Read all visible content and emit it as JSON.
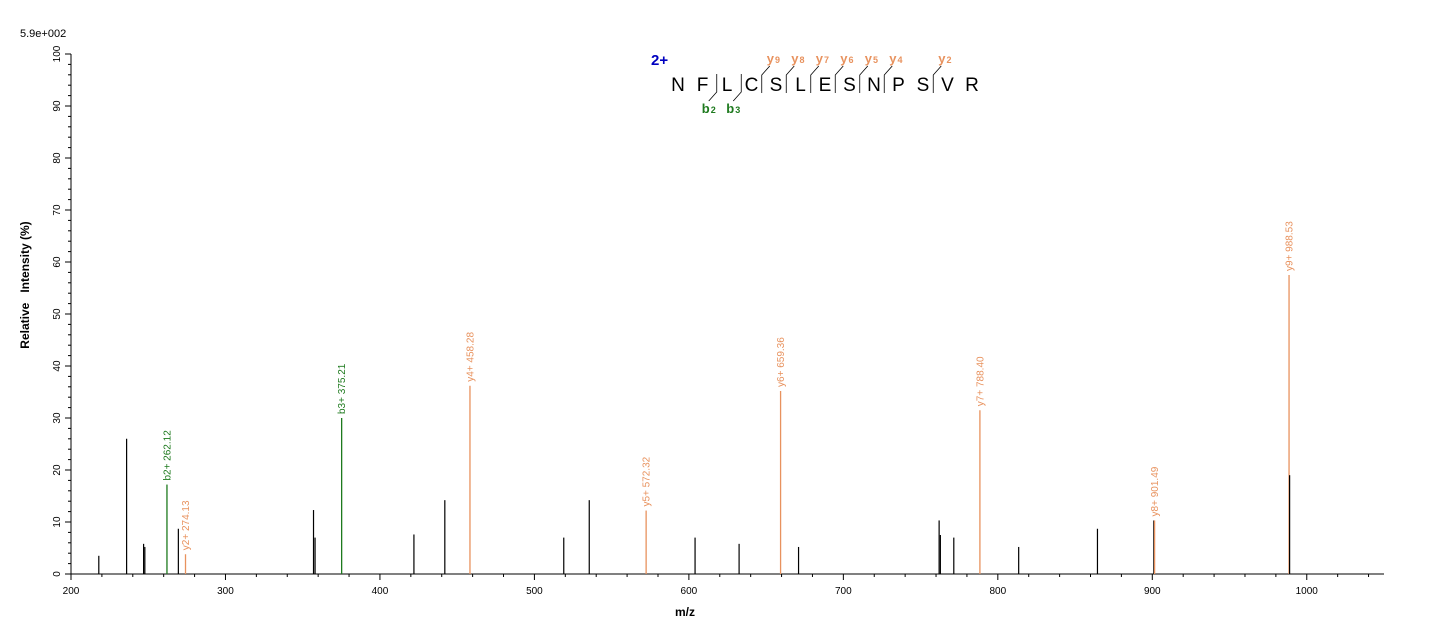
{
  "colors": {
    "y_ion": "#E8925E",
    "b_ion": "#1E7A1E",
    "other": "#000000",
    "charge": "#0000C0"
  },
  "chart_data": {
    "type": "bar",
    "scale_label": "5.9e+002",
    "xlabel": "m/z",
    "ylabel": "Relative   Intensity (%)",
    "xlim": [
      200,
      1050
    ],
    "ylim": [
      0,
      100
    ],
    "x_ticks": [
      200,
      300,
      400,
      500,
      600,
      700,
      800,
      900,
      1000
    ],
    "y_ticks": [
      0,
      10,
      20,
      30,
      40,
      50,
      60,
      70,
      80,
      90,
      100
    ],
    "peaks": [
      {
        "mz": 218.0,
        "intensity": 3.5,
        "ion": "other"
      },
      {
        "mz": 236.0,
        "intensity": 26.0,
        "ion": "other"
      },
      {
        "mz": 247.0,
        "intensity": 5.8,
        "ion": "other"
      },
      {
        "mz": 247.8,
        "intensity": 5.2,
        "ion": "other"
      },
      {
        "mz": 262.12,
        "intensity": 17.2,
        "ion": "b",
        "label": "b2+ 262.12"
      },
      {
        "mz": 269.5,
        "intensity": 8.7,
        "ion": "other"
      },
      {
        "mz": 274.13,
        "intensity": 3.8,
        "ion": "y",
        "label": "y2+ 274.13"
      },
      {
        "mz": 357.0,
        "intensity": 12.3,
        "ion": "other"
      },
      {
        "mz": 358.0,
        "intensity": 7.0,
        "ion": "other"
      },
      {
        "mz": 375.21,
        "intensity": 30.0,
        "ion": "b",
        "label": "b3+ 375.21"
      },
      {
        "mz": 422.0,
        "intensity": 7.6,
        "ion": "other"
      },
      {
        "mz": 442.0,
        "intensity": 14.2,
        "ion": "other"
      },
      {
        "mz": 458.28,
        "intensity": 36.2,
        "ion": "y",
        "label": "y4+ 458.28"
      },
      {
        "mz": 519.0,
        "intensity": 7.0,
        "ion": "other"
      },
      {
        "mz": 535.5,
        "intensity": 14.2,
        "ion": "other"
      },
      {
        "mz": 572.32,
        "intensity": 12.2,
        "ion": "y",
        "label": "y5+ 572.32"
      },
      {
        "mz": 604.0,
        "intensity": 7.0,
        "ion": "other"
      },
      {
        "mz": 632.5,
        "intensity": 5.8,
        "ion": "other"
      },
      {
        "mz": 659.36,
        "intensity": 35.2,
        "ion": "y",
        "label": "y6+ 659.36"
      },
      {
        "mz": 671.0,
        "intensity": 5.2,
        "ion": "other"
      },
      {
        "mz": 762.0,
        "intensity": 10.3,
        "ion": "other"
      },
      {
        "mz": 762.8,
        "intensity": 7.5,
        "ion": "other"
      },
      {
        "mz": 771.5,
        "intensity": 7.0,
        "ion": "other"
      },
      {
        "mz": 788.4,
        "intensity": 31.5,
        "ion": "y",
        "label": "y7+ 788.40"
      },
      {
        "mz": 813.5,
        "intensity": 5.2,
        "ion": "other"
      },
      {
        "mz": 864.5,
        "intensity": 8.7,
        "ion": "other"
      },
      {
        "mz": 901.0,
        "intensity": 10.3,
        "ion": "other"
      },
      {
        "mz": 901.49,
        "intensity": 10.3,
        "ion": "y",
        "label": "y8+ 901.49"
      },
      {
        "mz": 988.53,
        "intensity": 57.5,
        "ion": "y",
        "label": "y9+ 988.53"
      },
      {
        "mz": 988.9,
        "intensity": 19.0,
        "ion": "other"
      }
    ],
    "peptide": {
      "charge": "2+",
      "residues": [
        "N",
        "F",
        "L",
        "C",
        "S",
        "L",
        "E",
        "S",
        "N",
        "P",
        "S",
        "V",
        "R"
      ],
      "y_ions": [
        {
          "after": 3,
          "main": "y",
          "sub": "9"
        },
        {
          "after": 4,
          "main": "y",
          "sub": "8"
        },
        {
          "after": 5,
          "main": "y",
          "sub": "7"
        },
        {
          "after": 6,
          "main": "y",
          "sub": "6"
        },
        {
          "after": 7,
          "main": "y",
          "sub": "5"
        },
        {
          "after": 8,
          "main": "y",
          "sub": "4"
        },
        {
          "after": 10,
          "main": "y",
          "sub": "2"
        }
      ],
      "b_ions": [
        {
          "after": 1,
          "main": "b",
          "sub": "2"
        },
        {
          "after": 2,
          "main": "b",
          "sub": "3"
        }
      ]
    }
  }
}
